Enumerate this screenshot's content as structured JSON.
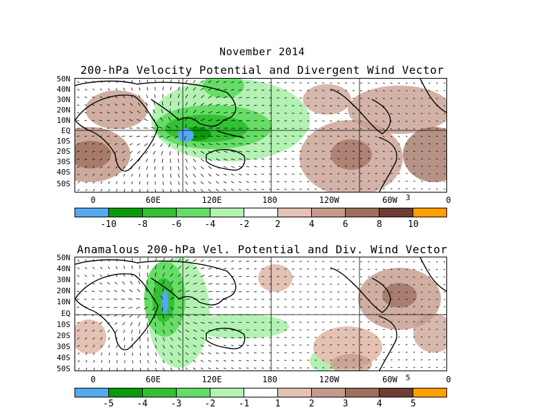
{
  "header": {
    "title": "November 2014",
    "panel1_title": "200-hPa Velocity Potential and Divergent Wind Vector",
    "panel2_title": "Anamalous 200-hPa Vel. Potential and Div. Wind Vector"
  },
  "axes": {
    "lat_labels": [
      "50N",
      "40N",
      "30N",
      "20N",
      "10N",
      "EQ",
      "10S",
      "20S",
      "30S",
      "40S",
      "50S"
    ],
    "lon_labels": [
      "0",
      "60E",
      "120E",
      "180",
      "120W",
      "60W",
      "0"
    ]
  },
  "panel1": {
    "ref_vector": "3",
    "colorbar_labels": [
      "-10",
      "-8",
      "-6",
      "-4",
      "-2",
      "2",
      "4",
      "6",
      "8",
      "10"
    ],
    "colorbar_colors": [
      "#55a9ef",
      "#0a9a0a",
      "#33c033",
      "#66dd66",
      "#b3f2b3",
      "#ffffff",
      "#e3c2b3",
      "#c49a8b",
      "#9e6e5e",
      "#6e3e32",
      "#ff9f00"
    ]
  },
  "panel2": {
    "ref_vector": "5",
    "colorbar_labels": [
      "-5",
      "-4",
      "-3",
      "-2",
      "-1",
      "1",
      "2",
      "3",
      "4",
      "5"
    ],
    "colorbar_colors": [
      "#55a9ef",
      "#0a9a0a",
      "#33c033",
      "#66dd66",
      "#b3f2b3",
      "#ffffff",
      "#e3c2b3",
      "#c49a8b",
      "#9e6e5e",
      "#6e3e32",
      "#ff9f00"
    ]
  }
}
